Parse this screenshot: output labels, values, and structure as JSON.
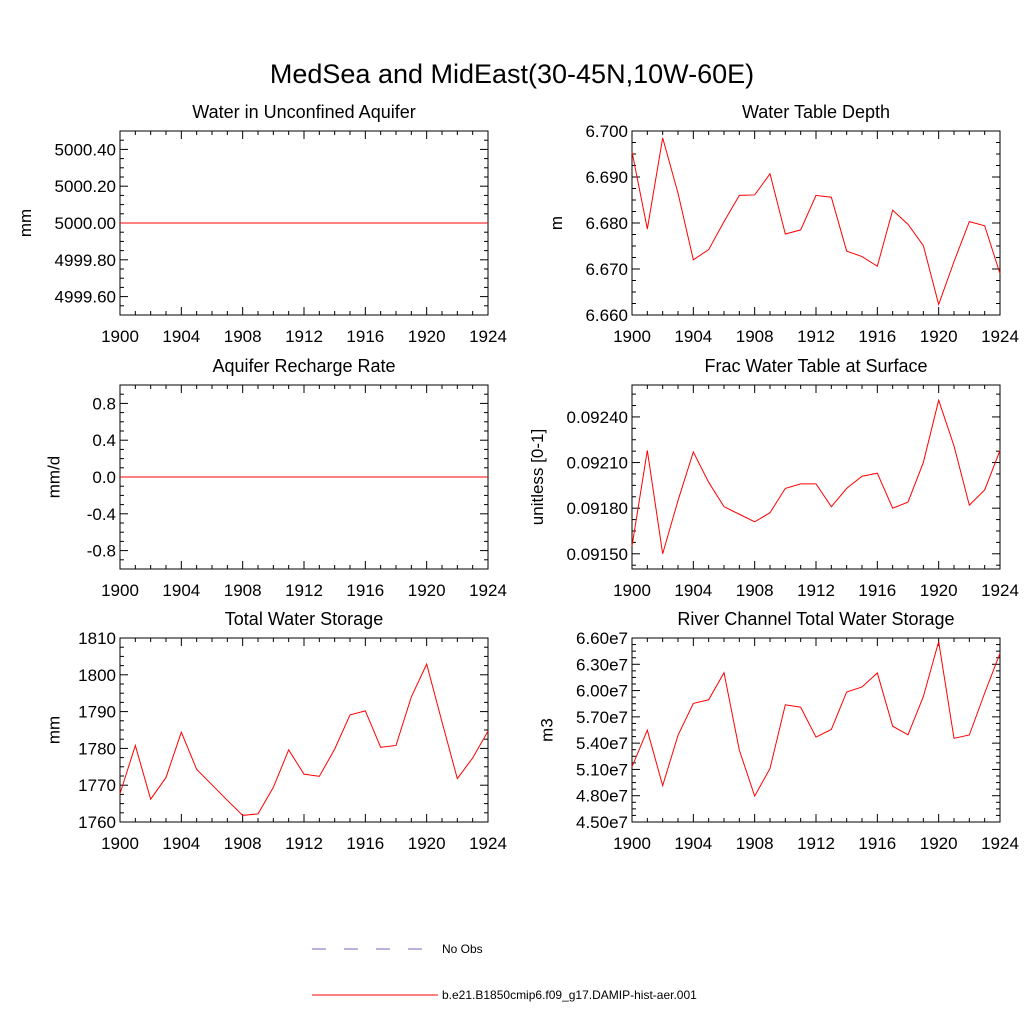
{
  "title": "MedSea and MidEast(30-45N,10W-60E)",
  "legend": [
    {
      "label": "No Obs",
      "color": "#6a6ab8",
      "style": "dashed"
    },
    {
      "label": "b.e21.B1850cmip6.f09_g17.DAMIP-hist-aer.001",
      "color": "#ff0000",
      "style": "solid"
    }
  ],
  "chart_data": [
    {
      "type": "line",
      "title": "Water in Unconfined Aquifer",
      "ylabel": "mm",
      "xlim": [
        1900,
        1924
      ],
      "ylim": [
        4999.5,
        5000.5
      ],
      "xticks": [
        "1900",
        "1904",
        "1908",
        "1912",
        "1916",
        "1920",
        "1924"
      ],
      "yticks": [
        {
          "value": 4999.6,
          "label": "4999.60"
        },
        {
          "value": 4999.8,
          "label": "4999.80"
        },
        {
          "value": 5000.0,
          "label": "5000.00"
        },
        {
          "value": 5000.2,
          "label": "5000.20"
        },
        {
          "value": 5000.4,
          "label": "5000.40"
        }
      ],
      "x": [
        1900,
        1901,
        1902,
        1903,
        1904,
        1905,
        1906,
        1907,
        1908,
        1909,
        1910,
        1911,
        1912,
        1913,
        1914,
        1915,
        1916,
        1917,
        1918,
        1919,
        1920,
        1921,
        1922,
        1923,
        1924
      ],
      "series": [
        {
          "color": "#ff0000",
          "values": [
            5000.0,
            5000.0,
            5000.0,
            5000.0,
            5000.0,
            5000.0,
            5000.0,
            5000.0,
            5000.0,
            5000.0,
            5000.0,
            5000.0,
            5000.0,
            5000.0,
            5000.0,
            5000.0,
            5000.0,
            5000.0,
            5000.0,
            5000.0,
            5000.0,
            5000.0,
            5000.0,
            5000.0,
            5000.0
          ]
        }
      ]
    },
    {
      "type": "line",
      "title": "Water Table Depth",
      "ylabel": "m",
      "xlim": [
        1900,
        1924
      ],
      "ylim": [
        6.66,
        6.7
      ],
      "xticks": [
        "1900",
        "1904",
        "1908",
        "1912",
        "1916",
        "1920",
        "1924"
      ],
      "yticks": [
        {
          "value": 6.66,
          "label": "6.660"
        },
        {
          "value": 6.67,
          "label": "6.670"
        },
        {
          "value": 6.68,
          "label": "6.680"
        },
        {
          "value": 6.69,
          "label": "6.690"
        },
        {
          "value": 6.7,
          "label": "6.700"
        }
      ],
      "x": [
        1900,
        1901,
        1902,
        1903,
        1904,
        1905,
        1906,
        1907,
        1908,
        1909,
        1910,
        1911,
        1912,
        1913,
        1914,
        1915,
        1916,
        1917,
        1918,
        1919,
        1920,
        1921,
        1922,
        1923,
        1924
      ],
      "series": [
        {
          "color": "#ff0000",
          "values": [
            6.6955,
            6.6787,
            6.6985,
            6.6865,
            6.672,
            6.6742,
            6.6803,
            6.686,
            6.6861,
            6.6907,
            6.6776,
            6.6785,
            6.686,
            6.6856,
            6.6739,
            6.6727,
            6.6706,
            6.6828,
            6.6797,
            6.6751,
            6.6623,
            6.6716,
            6.6803,
            6.6794,
            6.669
          ]
        }
      ]
    },
    {
      "type": "line",
      "title": "Aquifer Recharge Rate",
      "ylabel": "mm/d",
      "xlim": [
        1900,
        1924
      ],
      "ylim": [
        -1.0,
        1.0
      ],
      "xticks": [
        "1900",
        "1904",
        "1908",
        "1912",
        "1916",
        "1920",
        "1924"
      ],
      "yticks": [
        {
          "value": -0.8,
          "label": "-0.8"
        },
        {
          "value": -0.4,
          "label": "-0.4"
        },
        {
          "value": 0.0,
          "label": "0.0"
        },
        {
          "value": 0.4,
          "label": "0.4"
        },
        {
          "value": 0.8,
          "label": "0.8"
        }
      ],
      "x": [
        1900,
        1901,
        1902,
        1903,
        1904,
        1905,
        1906,
        1907,
        1908,
        1909,
        1910,
        1911,
        1912,
        1913,
        1914,
        1915,
        1916,
        1917,
        1918,
        1919,
        1920,
        1921,
        1922,
        1923,
        1924
      ],
      "series": [
        {
          "color": "#ff0000",
          "values": [
            0,
            0,
            0,
            0,
            0,
            0,
            0,
            0,
            0,
            0,
            0,
            0,
            0,
            0,
            0,
            0,
            0,
            0,
            0,
            0,
            0,
            0,
            0,
            0,
            0
          ]
        }
      ]
    },
    {
      "type": "line",
      "title": "Frac Water Table at Surface",
      "ylabel": "unitless [0-1]",
      "xlim": [
        1900,
        1924
      ],
      "ylim": [
        0.0914,
        0.09261
      ],
      "xticks": [
        "1900",
        "1904",
        "1908",
        "1912",
        "1916",
        "1920",
        "1924"
      ],
      "yticks": [
        {
          "value": 0.0915,
          "label": "0.09150"
        },
        {
          "value": 0.0918,
          "label": "0.09180"
        },
        {
          "value": 0.0921,
          "label": "0.09210"
        },
        {
          "value": 0.0924,
          "label": "0.09240"
        }
      ],
      "x": [
        1900,
        1901,
        1902,
        1903,
        1904,
        1905,
        1906,
        1907,
        1908,
        1909,
        1910,
        1911,
        1912,
        1913,
        1914,
        1915,
        1916,
        1917,
        1918,
        1919,
        1920,
        1921,
        1922,
        1923,
        1924
      ],
      "series": [
        {
          "color": "#ff0000",
          "values": [
            0.09155,
            0.09218,
            0.0915,
            0.09185,
            0.09217,
            0.09197,
            0.09181,
            0.09176,
            0.09171,
            0.09177,
            0.09193,
            0.09196,
            0.09196,
            0.09181,
            0.09193,
            0.09201,
            0.09203,
            0.0918,
            0.09184,
            0.0921,
            0.09251,
            0.09221,
            0.09182,
            0.09192,
            0.09218
          ]
        }
      ]
    },
    {
      "type": "line",
      "title": "Total Water Storage",
      "ylabel": "mm",
      "xlim": [
        1900,
        1924
      ],
      "ylim": [
        1760,
        1810
      ],
      "xticks": [
        "1900",
        "1904",
        "1908",
        "1912",
        "1916",
        "1920",
        "1924"
      ],
      "yticks": [
        {
          "value": 1760,
          "label": "1760"
        },
        {
          "value": 1770,
          "label": "1770"
        },
        {
          "value": 1780,
          "label": "1780"
        },
        {
          "value": 1790,
          "label": "1790"
        },
        {
          "value": 1800,
          "label": "1800"
        },
        {
          "value": 1810,
          "label": "1810"
        }
      ],
      "x": [
        1900,
        1901,
        1902,
        1903,
        1904,
        1905,
        1906,
        1907,
        1908,
        1909,
        1910,
        1911,
        1912,
        1913,
        1914,
        1915,
        1916,
        1917,
        1918,
        1919,
        1920,
        1921,
        1922,
        1923,
        1924
      ],
      "series": [
        {
          "color": "#ff0000",
          "values": [
            1767.7,
            1780.8,
            1766.2,
            1772.1,
            1784.4,
            1774.3,
            1770.1,
            1765.9,
            1761.8,
            1762.2,
            1769.4,
            1779.6,
            1773.0,
            1772.4,
            1779.8,
            1789.1,
            1790.2,
            1780.3,
            1780.8,
            1794.0,
            1802.9,
            1787.2,
            1771.8,
            1777.4,
            1784.7
          ]
        }
      ]
    },
    {
      "type": "line",
      "title": "River Channel Total Water Storage",
      "ylabel": "m3",
      "xlim": [
        1900,
        1924
      ],
      "ylim": [
        45000000.0,
        66000000.0
      ],
      "xticks": [
        "1900",
        "1904",
        "1908",
        "1912",
        "1916",
        "1920",
        "1924"
      ],
      "yticks": [
        {
          "value": 45000000.0,
          "label": "4.50e7"
        },
        {
          "value": 48000000.0,
          "label": "4.80e7"
        },
        {
          "value": 51000000.0,
          "label": "5.10e7"
        },
        {
          "value": 54000000.0,
          "label": "5.40e7"
        },
        {
          "value": 57000000.0,
          "label": "5.70e7"
        },
        {
          "value": 60000000.0,
          "label": "6.00e7"
        },
        {
          "value": 63000000.0,
          "label": "6.30e7"
        },
        {
          "value": 66000000.0,
          "label": "6.60e7"
        }
      ],
      "x": [
        1900,
        1901,
        1902,
        1903,
        1904,
        1905,
        1906,
        1907,
        1908,
        1909,
        1910,
        1911,
        1912,
        1913,
        1914,
        1915,
        1916,
        1917,
        1918,
        1919,
        1920,
        1921,
        1922,
        1923,
        1924
      ],
      "series": [
        {
          "color": "#ff0000",
          "values": [
            51300000,
            55480000,
            49150000,
            54890000,
            58530000,
            58950000,
            62040000,
            53200000,
            47960000,
            51110000,
            58380000,
            58100000,
            54690000,
            55560000,
            59840000,
            60410000,
            62010000,
            55930000,
            54950000,
            59310000,
            65590000,
            54550000,
            54930000,
            59710000,
            64270000
          ]
        }
      ]
    }
  ]
}
